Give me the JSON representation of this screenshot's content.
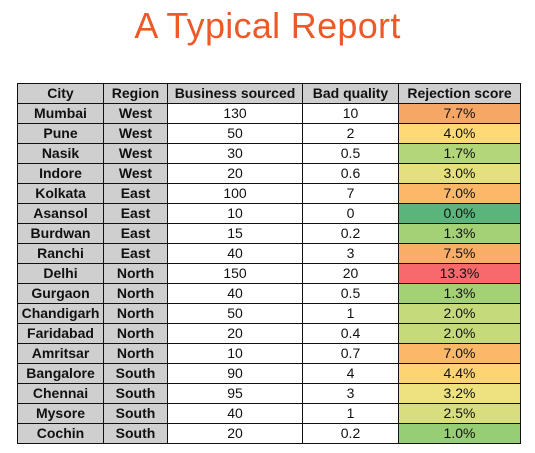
{
  "title": "A Typical Report",
  "table": {
    "headers": {
      "city": "City",
      "region": "Region",
      "business": "Business sourced",
      "bad_quality": "Bad quality",
      "rejection": "Rejection score"
    },
    "rows": [
      {
        "city": "Mumbai",
        "region": "West",
        "business": "130",
        "bad_quality": "10",
        "rejection": "7.7%",
        "color": "#f7a765"
      },
      {
        "city": "Pune",
        "region": "West",
        "business": "50",
        "bad_quality": "2",
        "rejection": "4.0%",
        "color": "#ffd975"
      },
      {
        "city": "Nasik",
        "region": "West",
        "business": "30",
        "bad_quality": "0.5",
        "rejection": "1.7%",
        "color": "#b3d679"
      },
      {
        "city": "Indore",
        "region": "West",
        "business": "20",
        "bad_quality": "0.6",
        "rejection": "3.0%",
        "color": "#e5e07e"
      },
      {
        "city": "Kolkata",
        "region": "East",
        "business": "100",
        "bad_quality": "7",
        "rejection": "7.0%",
        "color": "#fbb869"
      },
      {
        "city": "Asansol",
        "region": "East",
        "business": "10",
        "bad_quality": "0",
        "rejection": "0.0%",
        "color": "#5bb479"
      },
      {
        "city": "Burdwan",
        "region": "East",
        "business": "15",
        "bad_quality": "0.2",
        "rejection": "1.3%",
        "color": "#a4d175"
      },
      {
        "city": "Ranchi",
        "region": "East",
        "business": "40",
        "bad_quality": "3",
        "rejection": "7.5%",
        "color": "#f9ad66"
      },
      {
        "city": "Delhi",
        "region": "North",
        "business": "150",
        "bad_quality": "20",
        "rejection": "13.3%",
        "color": "#f8696b"
      },
      {
        "city": "Gurgaon",
        "region": "North",
        "business": "40",
        "bad_quality": "0.5",
        "rejection": "1.3%",
        "color": "#a4d175"
      },
      {
        "city": "Chandigarh",
        "region": "North",
        "business": "50",
        "bad_quality": "1",
        "rejection": "2.0%",
        "color": "#c5db7b"
      },
      {
        "city": "Faridabad",
        "region": "North",
        "business": "20",
        "bad_quality": "0.4",
        "rejection": "2.0%",
        "color": "#c5db7b"
      },
      {
        "city": "Amritsar",
        "region": "North",
        "business": "10",
        "bad_quality": "0.7",
        "rejection": "7.0%",
        "color": "#fbb869"
      },
      {
        "city": "Bangalore",
        "region": "South",
        "business": "90",
        "bad_quality": "4",
        "rejection": "4.4%",
        "color": "#fed473"
      },
      {
        "city": "Chennai",
        "region": "South",
        "business": "95",
        "bad_quality": "3",
        "rejection": "3.2%",
        "color": "#ede27f"
      },
      {
        "city": "Mysore",
        "region": "South",
        "business": "40",
        "bad_quality": "1",
        "rejection": "2.5%",
        "color": "#d8de7d"
      },
      {
        "city": "Cochin",
        "region": "South",
        "business": "20",
        "bad_quality": "0.2",
        "rejection": "1.0%",
        "color": "#97cd75"
      }
    ]
  }
}
